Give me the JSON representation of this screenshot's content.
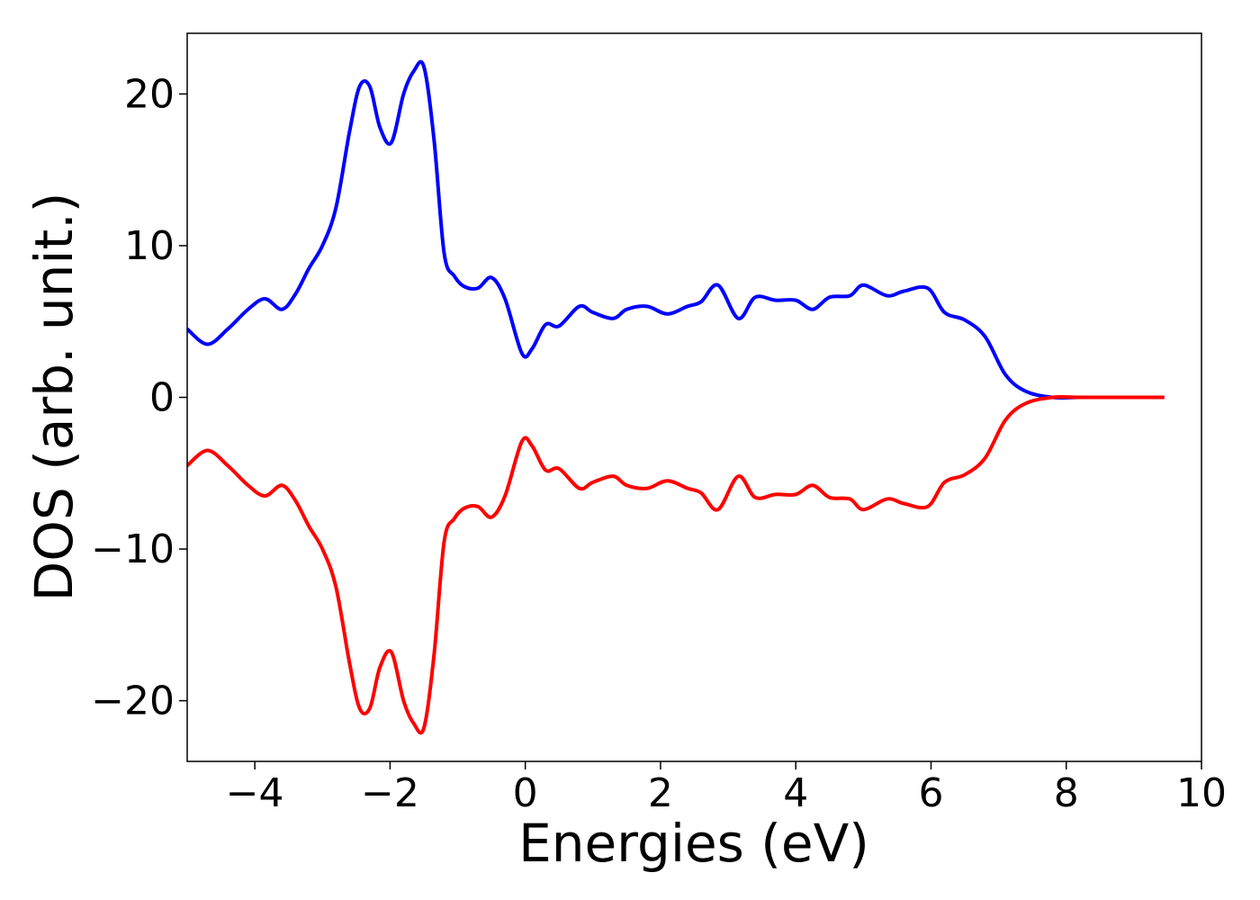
{
  "chart_data": {
    "type": "line",
    "title": "",
    "xlabel": "Energies (eV)",
    "ylabel": "DOS (arb. unit.)",
    "xlim": [
      -5,
      10
    ],
    "ylim": [
      -24,
      24
    ],
    "xticks": [
      -4,
      -2,
      0,
      2,
      4,
      6,
      8,
      10
    ],
    "yticks": [
      -20,
      -10,
      0,
      10,
      20
    ],
    "xtick_labels": [
      "−4",
      "−2",
      "0",
      "2",
      "4",
      "6",
      "8",
      "10"
    ],
    "ytick_labels": [
      "−20",
      "−10",
      "0",
      "10",
      "20"
    ],
    "grid": false,
    "legend": "none",
    "colors": {
      "series_up": "#0000ff",
      "series_down": "#ff0000",
      "axes": "#000000"
    },
    "x": [
      -5.0,
      -4.7,
      -4.4,
      -4.1,
      -3.85,
      -3.6,
      -3.4,
      -3.2,
      -3.0,
      -2.8,
      -2.6,
      -2.45,
      -2.3,
      -2.15,
      -1.98,
      -1.8,
      -1.65,
      -1.5,
      -1.35,
      -1.2,
      -1.05,
      -0.9,
      -0.7,
      -0.5,
      -0.3,
      -0.05,
      0.1,
      0.3,
      0.5,
      0.8,
      1.0,
      1.3,
      1.5,
      1.8,
      2.1,
      2.4,
      2.6,
      2.85,
      3.15,
      3.4,
      3.7,
      4.0,
      4.25,
      4.5,
      4.8,
      5.0,
      5.35,
      5.6,
      5.95,
      6.2,
      6.5,
      6.8,
      7.1,
      7.4,
      7.8,
      8.2,
      8.6,
      9.0,
      9.45
    ],
    "series": [
      {
        "values": [
          4.5,
          3.5,
          4.5,
          5.8,
          6.5,
          5.8,
          6.8,
          8.5,
          10.0,
          12.5,
          17.5,
          20.5,
          20.5,
          17.8,
          16.8,
          20.0,
          21.5,
          21.8,
          17.0,
          9.5,
          8.0,
          7.3,
          7.2,
          7.9,
          6.5,
          2.9,
          3.2,
          4.8,
          4.7,
          6.0,
          5.6,
          5.2,
          5.8,
          6.0,
          5.5,
          6.0,
          6.3,
          7.4,
          5.2,
          6.6,
          6.4,
          6.4,
          5.8,
          6.6,
          6.7,
          7.4,
          6.7,
          7.0,
          7.2,
          5.6,
          5.1,
          4.0,
          1.5,
          0.4,
          0.0,
          0.0,
          0.0,
          0.0,
          0.0
        ]
      },
      {
        "values": [
          -4.5,
          -3.5,
          -4.5,
          -5.8,
          -6.5,
          -5.8,
          -6.8,
          -8.5,
          -10.0,
          -12.5,
          -17.5,
          -20.5,
          -20.5,
          -17.8,
          -16.8,
          -20.0,
          -21.5,
          -21.8,
          -17.0,
          -9.5,
          -8.0,
          -7.3,
          -7.2,
          -7.9,
          -6.5,
          -2.9,
          -3.2,
          -4.8,
          -4.7,
          -6.0,
          -5.6,
          -5.2,
          -5.8,
          -6.0,
          -5.5,
          -6.0,
          -6.3,
          -7.4,
          -5.2,
          -6.6,
          -6.4,
          -6.4,
          -5.8,
          -6.6,
          -6.7,
          -7.4,
          -6.7,
          -7.0,
          -7.2,
          -5.6,
          -5.1,
          -4.0,
          -1.5,
          -0.4,
          0.0,
          0.0,
          0.0,
          0.0,
          0.0
        ]
      }
    ]
  }
}
